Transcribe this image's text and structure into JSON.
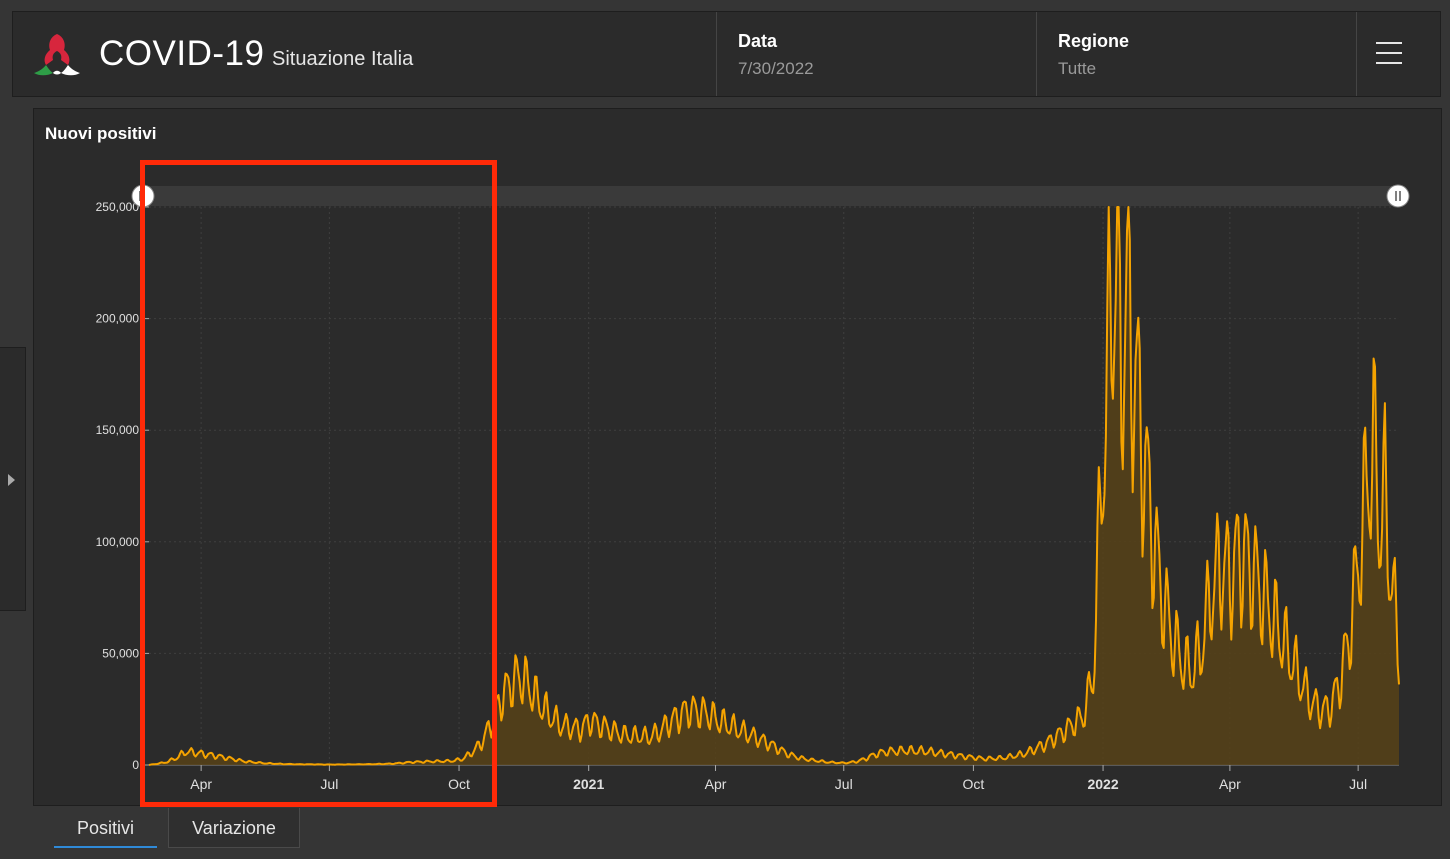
{
  "header": {
    "title": "COVID-19",
    "subtitle": "Situazione Italia",
    "date_label": "Data",
    "date_value": "7/30/2022",
    "region_label": "Regione",
    "region_value": "Tutte"
  },
  "icons": {
    "logo": "italy-virus-logo-icon",
    "menu": "hamburger-menu-icon",
    "side_toggle": "caret-right-icon"
  },
  "panel": {
    "title": "Nuovi positivi"
  },
  "tabs": [
    {
      "label": "Positivi",
      "active": true
    },
    {
      "label": "Variazione",
      "active": false
    }
  ],
  "colors": {
    "line": "#f5a300",
    "area": "#574218",
    "highlight": "#ff2a08",
    "tab_active": "#2f8ad8"
  },
  "chart_data": {
    "type": "area",
    "title": "Nuovi positivi",
    "xlabel": "",
    "ylabel": "",
    "y_ticks": [
      "0",
      "50,000",
      "100,000",
      "150,000",
      "200,000",
      "250,000"
    ],
    "ylim": [
      0,
      250000
    ],
    "x_ticks": [
      {
        "date": "2020-04-01",
        "label": "Apr",
        "bold": false
      },
      {
        "date": "2020-07-01",
        "label": "Jul",
        "bold": false
      },
      {
        "date": "2020-10-01",
        "label": "Oct",
        "bold": false
      },
      {
        "date": "2021-01-01",
        "label": "2021",
        "bold": true
      },
      {
        "date": "2021-04-01",
        "label": "Apr",
        "bold": false
      },
      {
        "date": "2021-07-01",
        "label": "Jul",
        "bold": false
      },
      {
        "date": "2021-10-01",
        "label": "Oct",
        "bold": false
      },
      {
        "date": "2022-01-01",
        "label": "2022",
        "bold": true
      },
      {
        "date": "2022-04-01",
        "label": "Apr",
        "bold": false
      },
      {
        "date": "2022-07-01",
        "label": "Jul",
        "bold": false
      }
    ],
    "xlim": [
      "2020-02-24",
      "2022-07-30"
    ],
    "grid": true,
    "series": [
      {
        "values_are": "approximate daily new positive cases (weekly envelope)",
        "points": [
          [
            "2020-02-24",
            0
          ],
          [
            "2020-03-07",
            1200
          ],
          [
            "2020-03-14",
            3000
          ],
          [
            "2020-03-21",
            6000
          ],
          [
            "2020-03-28",
            5500
          ],
          [
            "2020-04-04",
            4800
          ],
          [
            "2020-04-11",
            4200
          ],
          [
            "2020-04-18",
            3300
          ],
          [
            "2020-04-25",
            2500
          ],
          [
            "2020-05-02",
            1600
          ],
          [
            "2020-05-16",
            800
          ],
          [
            "2020-05-30",
            400
          ],
          [
            "2020-06-13",
            300
          ],
          [
            "2020-07-01",
            200
          ],
          [
            "2020-07-15",
            250
          ],
          [
            "2020-08-01",
            350
          ],
          [
            "2020-08-15",
            600
          ],
          [
            "2020-08-29",
            1300
          ],
          [
            "2020-09-12",
            1600
          ],
          [
            "2020-09-26",
            1800
          ],
          [
            "2020-10-03",
            2600
          ],
          [
            "2020-10-10",
            5500
          ],
          [
            "2020-10-17",
            10000
          ],
          [
            "2020-10-24",
            19000
          ],
          [
            "2020-10-31",
            30000
          ],
          [
            "2020-11-07",
            37000
          ],
          [
            "2020-11-14",
            40000
          ],
          [
            "2020-11-21",
            34000
          ],
          [
            "2020-11-28",
            27000
          ],
          [
            "2020-12-05",
            22000
          ],
          [
            "2020-12-12",
            18000
          ],
          [
            "2020-12-19",
            17000
          ],
          [
            "2020-12-26",
            16000
          ],
          [
            "2021-01-02",
            20000
          ],
          [
            "2021-01-09",
            18000
          ],
          [
            "2021-01-16",
            16000
          ],
          [
            "2021-01-23",
            14000
          ],
          [
            "2021-01-30",
            13000
          ],
          [
            "2021-02-06",
            13000
          ],
          [
            "2021-02-13",
            12500
          ],
          [
            "2021-02-20",
            15000
          ],
          [
            "2021-02-27",
            19000
          ],
          [
            "2021-03-06",
            22000
          ],
          [
            "2021-03-13",
            25000
          ],
          [
            "2021-03-20",
            24000
          ],
          [
            "2021-03-27",
            23000
          ],
          [
            "2021-04-03",
            20000
          ],
          [
            "2021-04-10",
            18000
          ],
          [
            "2021-04-17",
            16000
          ],
          [
            "2021-04-24",
            14000
          ],
          [
            "2021-05-01",
            12000
          ],
          [
            "2021-05-08",
            10000
          ],
          [
            "2021-05-15",
            7500
          ],
          [
            "2021-05-22",
            5000
          ],
          [
            "2021-05-29",
            3500
          ],
          [
            "2021-06-05",
            2500
          ],
          [
            "2021-06-19",
            1300
          ],
          [
            "2021-07-01",
            900
          ],
          [
            "2021-07-10",
            1500
          ],
          [
            "2021-07-17",
            3000
          ],
          [
            "2021-07-24",
            5000
          ],
          [
            "2021-07-31",
            6000
          ],
          [
            "2021-08-14",
            6500
          ],
          [
            "2021-08-28",
            6200
          ],
          [
            "2021-09-11",
            5000
          ],
          [
            "2021-09-25",
            3800
          ],
          [
            "2021-10-09",
            2800
          ],
          [
            "2021-10-23",
            3200
          ],
          [
            "2021-11-06",
            5000
          ],
          [
            "2021-11-20",
            9000
          ],
          [
            "2021-12-04",
            15000
          ],
          [
            "2021-12-18",
            22000
          ],
          [
            "2021-12-25",
            40000
          ],
          [
            "2021-12-31",
            130000
          ],
          [
            "2022-01-04",
            170000
          ],
          [
            "2022-01-07",
            215000
          ],
          [
            "2022-01-11",
            220000
          ],
          [
            "2022-01-14",
            180000
          ],
          [
            "2022-01-18",
            210000
          ],
          [
            "2022-01-21",
            190000
          ],
          [
            "2022-01-28",
            150000
          ],
          [
            "2022-02-04",
            110000
          ],
          [
            "2022-02-11",
            80000
          ],
          [
            "2022-02-18",
            60000
          ],
          [
            "2022-02-25",
            48000
          ],
          [
            "2022-03-04",
            42000
          ],
          [
            "2022-03-11",
            50000
          ],
          [
            "2022-03-18",
            75000
          ],
          [
            "2022-03-25",
            90000
          ],
          [
            "2022-04-01",
            85000
          ],
          [
            "2022-04-08",
            95000
          ],
          [
            "2022-04-15",
            90000
          ],
          [
            "2022-04-22",
            80000
          ],
          [
            "2022-04-29",
            70000
          ],
          [
            "2022-05-06",
            60000
          ],
          [
            "2022-05-13",
            50000
          ],
          [
            "2022-05-20",
            40000
          ],
          [
            "2022-05-27",
            30000
          ],
          [
            "2022-06-03",
            25000
          ],
          [
            "2022-06-10",
            25000
          ],
          [
            "2022-06-17",
            35000
          ],
          [
            "2022-06-24",
            55000
          ],
          [
            "2022-07-01",
            90000
          ],
          [
            "2022-07-08",
            130000
          ],
          [
            "2022-07-12",
            143000
          ],
          [
            "2022-07-16",
            110000
          ],
          [
            "2022-07-20",
            120000
          ],
          [
            "2022-07-24",
            88000
          ],
          [
            "2022-07-30",
            50000
          ]
        ]
      }
    ]
  }
}
